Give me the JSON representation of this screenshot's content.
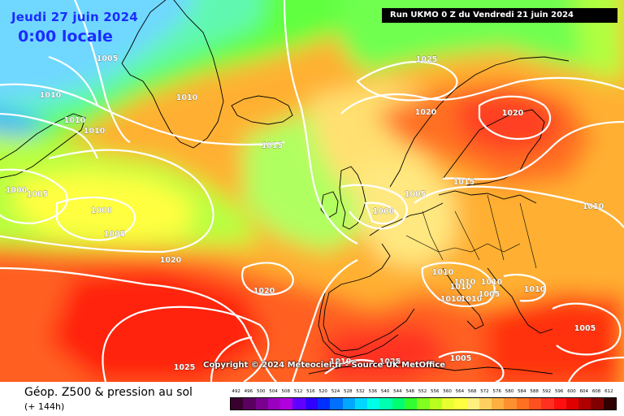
{
  "header": {
    "date_title": "Jeudi 27 juin 2024",
    "time_title": "0:00 locale",
    "run_info": "Run UKMO 0 Z du Vendredi 21 juin 2024"
  },
  "copyright": "Copyright © 2024 Meteociel.fr - Source UK MetOffice",
  "footer": {
    "product_title": "Géop. Z500 & pression au sol",
    "lead_time": "(+ 144h)"
  },
  "pressure_labels": [
    "1005",
    "1010",
    "1010",
    "1010",
    "1010",
    "1015",
    "1000",
    "1005",
    "1000",
    "1005",
    "1020",
    "1020",
    "1025",
    "1025",
    "1020",
    "1020",
    "1015",
    "1005",
    "1000",
    "1010",
    "1010",
    "1010",
    "1010",
    "1010",
    "1010",
    "1010",
    "1010",
    "1005",
    "1005",
    "1010",
    "1025",
    "1005"
  ],
  "legend": {
    "labels": [
      "492",
      "496",
      "500",
      "504",
      "508",
      "512",
      "516",
      "520",
      "524",
      "528",
      "532",
      "536",
      "540",
      "544",
      "548",
      "552",
      "556",
      "560",
      "564",
      "568",
      "572",
      "576",
      "580",
      "584",
      "588",
      "592",
      "596",
      "600",
      "604",
      "608",
      "612"
    ],
    "colors": [
      "#3a0030",
      "#5a0060",
      "#7a0090",
      "#9a00c0",
      "#b000e0",
      "#6000ff",
      "#3000ff",
      "#0030ff",
      "#0070ff",
      "#00a8ff",
      "#00d8ff",
      "#00ffe8",
      "#00ffb0",
      "#00ff70",
      "#30ff30",
      "#80ff20",
      "#b8ff20",
      "#e8ff30",
      "#ffff40",
      "#fff080",
      "#ffd060",
      "#ffb040",
      "#ff9030",
      "#ff7020",
      "#ff5020",
      "#ff3020",
      "#ff1010",
      "#e00000",
      "#b00000",
      "#800000",
      "#300000"
    ]
  },
  "colors": {
    "title_blue": "#1a2cff",
    "isobar": "#ffffff",
    "coastline": "#000000"
  }
}
